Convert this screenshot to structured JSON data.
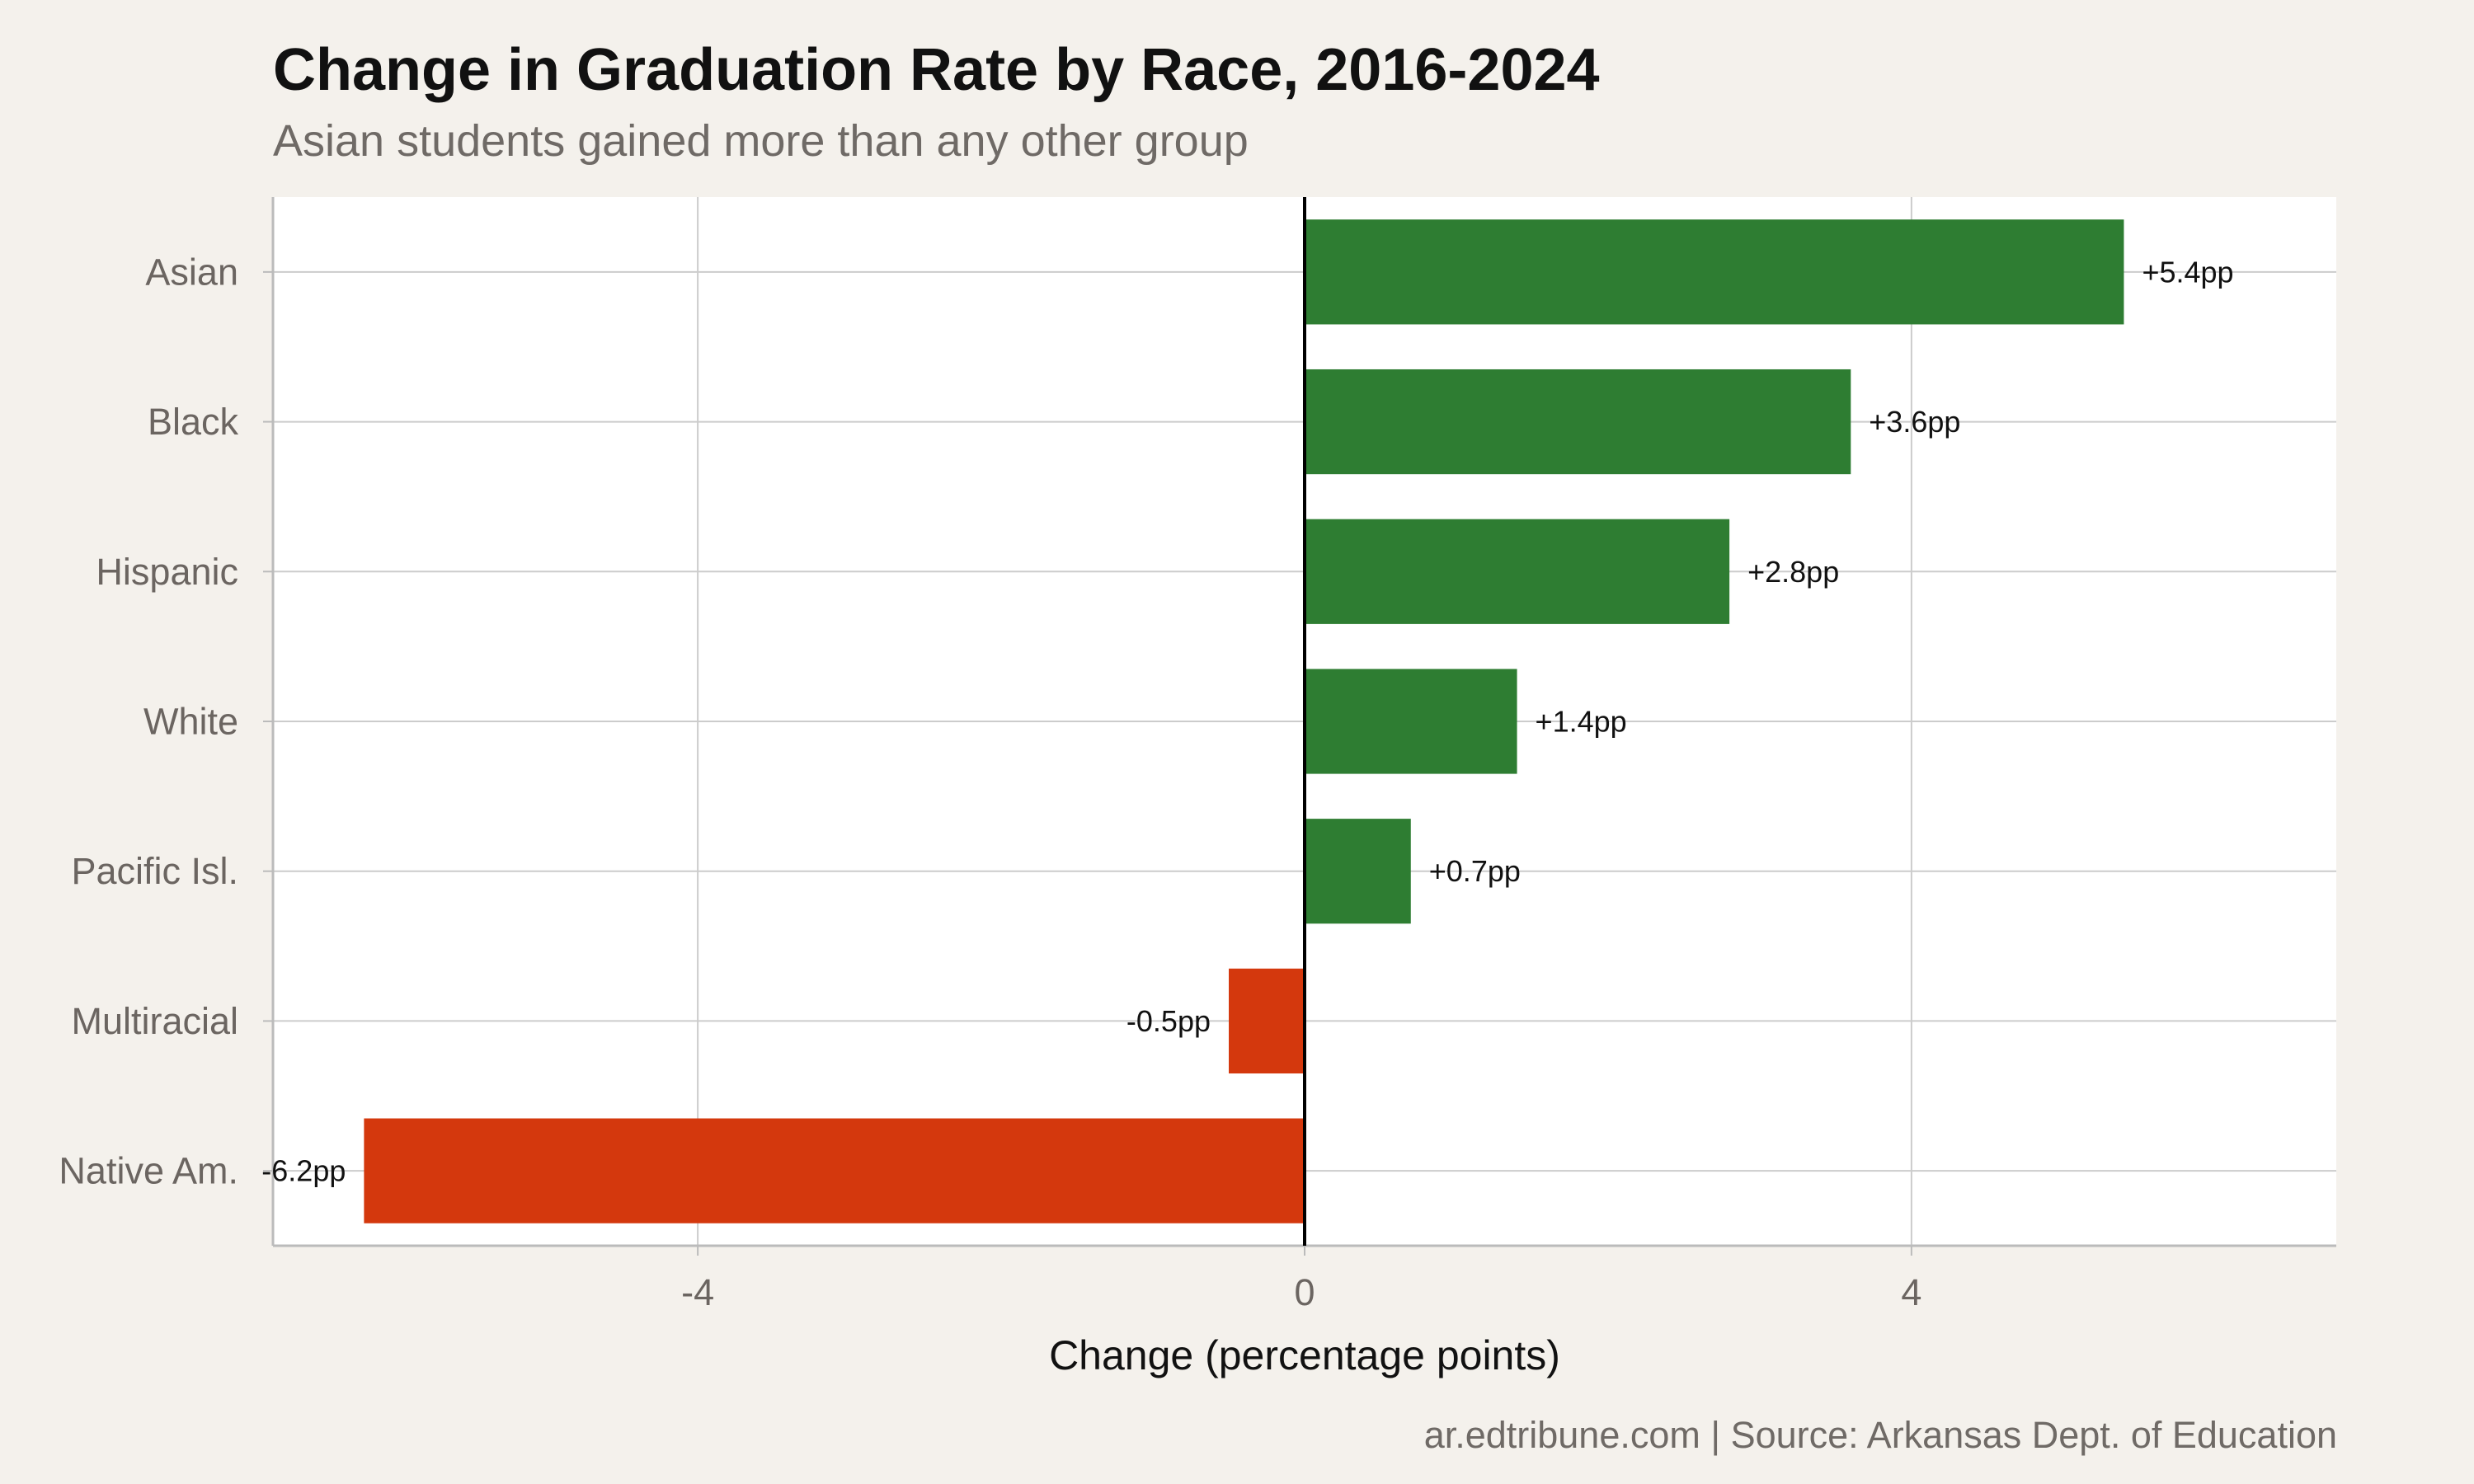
{
  "chart_data": {
    "type": "bar",
    "orientation": "horizontal",
    "title": "Change in Graduation Rate by Race, 2016-2024",
    "subtitle": "Asian students gained more than any other group",
    "caption": "ar.edtribune.com | Source: Arkansas Dept. of Education",
    "xlabel": "Change (percentage points)",
    "ylabel": "",
    "xlim": [
      -6.8,
      6.8
    ],
    "xticks": [
      -4,
      0,
      4
    ],
    "xtick_labels": [
      "-4",
      "0",
      "4"
    ],
    "grid": true,
    "legend": "none",
    "categories": [
      "Asian",
      "Black",
      "Hispanic",
      "White",
      "Pacific Isl.",
      "Multiracial",
      "Native Am."
    ],
    "values": [
      5.4,
      3.6,
      2.8,
      1.4,
      0.7,
      -0.5,
      -6.2
    ],
    "data_labels": [
      "+5.4pp",
      "+3.6pp",
      "+2.8pp",
      "+1.4pp",
      "+0.7pp",
      "-0.5pp",
      "-6.2pp"
    ],
    "colors": {
      "positive": "#2e7d32",
      "negative": "#d4380d",
      "panel_background": "#ffffff",
      "page_background": "#f4f1ec",
      "grid": "#cccccc",
      "zero_line": "#000000"
    }
  }
}
